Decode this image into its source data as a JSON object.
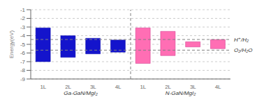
{
  "chart_data": {
    "type": "bar",
    "ylabel": "Energy(eV)",
    "ylim": [
      -9,
      -1
    ],
    "yticks": [
      -9,
      -8,
      -7,
      -6,
      -5,
      -4,
      -3,
      -2,
      -1
    ],
    "groups": [
      {
        "label": "Ga-GaN/MgI₂",
        "color": "#1414cc",
        "categories": [
          "1L",
          "2L",
          "3L",
          "4L"
        ],
        "cbm": [
          -3.1,
          -4.0,
          -4.3,
          -4.5
        ],
        "vbm": [
          -7.0,
          -6.5,
          -6.1,
          -5.9
        ]
      },
      {
        "label": "N-GaN/MgI₂",
        "color": "#ff6eb4",
        "categories": [
          "1L",
          "2L",
          "3L",
          "4L"
        ],
        "cbm": [
          -3.1,
          -3.5,
          -4.7,
          -4.45
        ],
        "vbm": [
          -7.2,
          -6.3,
          -5.3,
          -5.5
        ]
      }
    ],
    "reference_lines": [
      {
        "y": -4.44,
        "label": "H⁺/H₂"
      },
      {
        "y": -5.67,
        "label": "O₂/H₂O"
      }
    ]
  }
}
